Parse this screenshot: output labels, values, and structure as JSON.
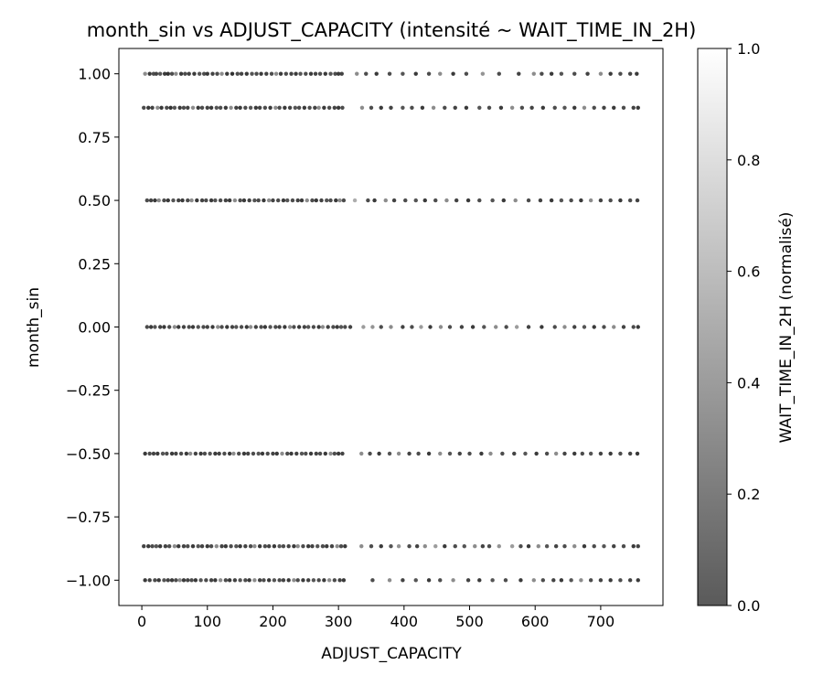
{
  "chart_data": {
    "type": "scatter",
    "title": "month_sin vs ADJUST_CAPACITY (intensité ~ WAIT_TIME_IN_2H)",
    "xlabel": "ADJUST_CAPACITY",
    "ylabel": "month_sin",
    "xlim": [
      -35,
      795
    ],
    "ylim": [
      -1.1,
      1.1
    ],
    "x_ticks": [
      0,
      100,
      200,
      300,
      400,
      500,
      600,
      700
    ],
    "x_tick_labels": [
      "0",
      "100",
      "200",
      "300",
      "400",
      "500",
      "600",
      "700"
    ],
    "y_ticks": [
      1.0,
      0.75,
      0.5,
      0.25,
      0.0,
      -0.25,
      -0.5,
      -0.75,
      -1.0
    ],
    "y_tick_labels": [
      "1.00",
      "0.75",
      "0.50",
      "0.25",
      "0.00",
      "−0.25",
      "−0.50",
      "−0.75",
      "−1.00"
    ],
    "grid": false,
    "point_color_encoding": "grayscale, dark gray (0) to white (1)",
    "colorbar": {
      "label": "WAIT_TIME_IN_2H (normalisé)",
      "range": [
        0.0,
        1.0
      ],
      "ticks": [
        0.0,
        0.2,
        0.4,
        0.6,
        0.8,
        1.0
      ],
      "tick_labels": [
        "0.0",
        "0.2",
        "0.4",
        "0.6",
        "0.8",
        "1.0"
      ],
      "color_low": "#5a5a5a",
      "color_high": "#ffffff"
    },
    "series": [
      {
        "y": 1.0,
        "x": [
          5,
          12,
          18,
          22,
          28,
          35,
          40,
          46,
          52,
          60,
          66,
          72,
          80,
          88,
          95,
          100,
          108,
          115,
          122,
          130,
          138,
          146,
          152,
          160,
          168,
          175,
          182,
          190,
          198,
          205,
          212,
          220,
          228,
          235,
          242,
          250,
          258,
          265,
          272,
          280,
          288,
          295,
          300,
          305,
          328,
          342,
          358,
          378,
          398,
          418,
          438,
          455,
          475,
          495,
          520,
          545,
          575,
          598,
          610,
          625,
          640,
          660,
          680,
          700,
          715,
          730,
          745,
          755
        ],
        "intensity": [
          0.3,
          0.1,
          0.2,
          0.15,
          0.25,
          0.1,
          0.05,
          0.2,
          0.3,
          0.1,
          0.2,
          0.15,
          0.1,
          0.25,
          0.2,
          0.1,
          0.15,
          0.2,
          0.3,
          0.1,
          0.05,
          0.2,
          0.15,
          0.1,
          0.25,
          0.2,
          0.1,
          0.15,
          0.2,
          0.3,
          0.1,
          0.2,
          0.15,
          0.1,
          0.25,
          0.2,
          0.1,
          0.15,
          0.2,
          0.1,
          0.25,
          0.2,
          0.1,
          0.15,
          0.3,
          0.2,
          0.1,
          0.2,
          0.25,
          0.1,
          0.2,
          0.3,
          0.1,
          0.2,
          0.35,
          0.2,
          0.15,
          0.3,
          0.2,
          0.1,
          0.25,
          0.2,
          0.15,
          0.3,
          0.1,
          0.2,
          0.15,
          0.1
        ]
      },
      {
        "y": 0.866,
        "x": [
          3,
          10,
          16,
          24,
          30,
          38,
          44,
          50,
          58,
          64,
          70,
          78,
          86,
          92,
          100,
          106,
          114,
          120,
          128,
          136,
          144,
          150,
          158,
          166,
          174,
          180,
          188,
          196,
          204,
          210,
          218,
          226,
          234,
          240,
          248,
          256,
          264,
          270,
          278,
          286,
          294,
          300,
          306,
          336,
          350,
          365,
          380,
          398,
          412,
          428,
          445,
          462,
          478,
          495,
          515,
          530,
          548,
          565,
          580,
          595,
          612,
          630,
          645,
          660,
          675,
          690,
          705,
          720,
          735,
          750,
          757
        ],
        "intensity": [
          0.2,
          0.1,
          0.15,
          0.3,
          0.1,
          0.2,
          0.05,
          0.25,
          0.1,
          0.2,
          0.15,
          0.3,
          0.1,
          0.2,
          0.15,
          0.1,
          0.25,
          0.2,
          0.1,
          0.3,
          0.15,
          0.1,
          0.2,
          0.25,
          0.1,
          0.15,
          0.2,
          0.1,
          0.3,
          0.2,
          0.1,
          0.15,
          0.25,
          0.2,
          0.1,
          0.2,
          0.15,
          0.3,
          0.1,
          0.2,
          0.15,
          0.1,
          0.2,
          0.3,
          0.2,
          0.1,
          0.15,
          0.25,
          0.2,
          0.1,
          0.3,
          0.2,
          0.15,
          0.1,
          0.25,
          0.2,
          0.1,
          0.3,
          0.2,
          0.15,
          0.1,
          0.2,
          0.25,
          0.1,
          0.3,
          0.2,
          0.15,
          0.1,
          0.2,
          0.15,
          0.1
        ]
      },
      {
        "y": 0.5,
        "x": [
          8,
          14,
          20,
          26,
          34,
          40,
          48,
          56,
          62,
          70,
          76,
          84,
          92,
          98,
          106,
          112,
          120,
          128,
          134,
          142,
          150,
          156,
          164,
          172,
          178,
          186,
          194,
          200,
          208,
          216,
          222,
          230,
          238,
          244,
          252,
          260,
          266,
          274,
          282,
          288,
          296,
          302,
          308,
          325,
          345,
          355,
          372,
          385,
          402,
          418,
          432,
          448,
          465,
          480,
          498,
          515,
          535,
          552,
          570,
          590,
          608,
          625,
          640,
          655,
          670,
          685,
          700,
          715,
          730,
          745,
          756
        ],
        "intensity": [
          0.2,
          0.15,
          0.1,
          0.3,
          0.2,
          0.1,
          0.25,
          0.15,
          0.1,
          0.2,
          0.3,
          0.1,
          0.15,
          0.2,
          0.1,
          0.25,
          0.2,
          0.15,
          0.1,
          0.3,
          0.2,
          0.1,
          0.15,
          0.25,
          0.2,
          0.1,
          0.3,
          0.15,
          0.2,
          0.1,
          0.25,
          0.2,
          0.15,
          0.1,
          0.3,
          0.2,
          0.1,
          0.15,
          0.25,
          0.2,
          0.1,
          0.3,
          0.2,
          0.5,
          0.2,
          0.1,
          0.3,
          0.15,
          0.2,
          0.25,
          0.1,
          0.2,
          0.3,
          0.15,
          0.1,
          0.2,
          0.25,
          0.1,
          0.3,
          0.2,
          0.15,
          0.1,
          0.25,
          0.2,
          0.1,
          0.3,
          0.15,
          0.2,
          0.1,
          0.2,
          0.15
        ]
      },
      {
        "y": 0.0,
        "x": [
          8,
          14,
          20,
          28,
          34,
          42,
          50,
          56,
          64,
          72,
          78,
          86,
          94,
          100,
          108,
          116,
          122,
          130,
          138,
          144,
          152,
          160,
          166,
          174,
          182,
          188,
          196,
          204,
          210,
          218,
          226,
          232,
          240,
          248,
          254,
          262,
          270,
          276,
          284,
          292,
          298,
          304,
          310,
          318,
          338,
          352,
          365,
          380,
          398,
          412,
          426,
          440,
          456,
          470,
          488,
          505,
          522,
          540,
          556,
          572,
          590,
          610,
          630,
          645,
          660,
          675,
          690,
          705,
          720,
          735,
          750,
          757
        ],
        "intensity": [
          0.2,
          0.1,
          0.25,
          0.15,
          0.1,
          0.2,
          0.3,
          0.1,
          0.15,
          0.2,
          0.1,
          0.25,
          0.2,
          0.15,
          0.1,
          0.3,
          0.2,
          0.1,
          0.15,
          0.25,
          0.2,
          0.1,
          0.3,
          0.15,
          0.2,
          0.1,
          0.25,
          0.2,
          0.15,
          0.1,
          0.3,
          0.2,
          0.1,
          0.15,
          0.25,
          0.2,
          0.1,
          0.3,
          0.15,
          0.2,
          0.1,
          0.25,
          0.2,
          0.15,
          0.4,
          0.35,
          0.2,
          0.3,
          0.15,
          0.2,
          0.4,
          0.1,
          0.3,
          0.2,
          0.15,
          0.1,
          0.25,
          0.3,
          0.2,
          0.4,
          0.15,
          0.1,
          0.2,
          0.3,
          0.15,
          0.25,
          0.1,
          0.2,
          0.3,
          0.15,
          0.2,
          0.1
        ]
      },
      {
        "y": -0.5,
        "x": [
          5,
          12,
          18,
          24,
          32,
          38,
          46,
          52,
          60,
          68,
          74,
          82,
          90,
          96,
          104,
          112,
          118,
          126,
          134,
          140,
          148,
          156,
          162,
          170,
          178,
          184,
          192,
          200,
          206,
          214,
          222,
          228,
          236,
          244,
          250,
          258,
          266,
          272,
          280,
          288,
          294,
          300,
          306,
          335,
          348,
          362,
          378,
          392,
          408,
          422,
          438,
          455,
          470,
          485,
          500,
          518,
          532,
          550,
          568,
          585,
          602,
          618,
          632,
          645,
          660,
          672,
          685,
          700,
          715,
          730,
          745,
          756
        ],
        "intensity": [
          0.1,
          0.2,
          0.15,
          0.1,
          0.25,
          0.2,
          0.1,
          0.15,
          0.2,
          0.1,
          0.3,
          0.15,
          0.1,
          0.2,
          0.25,
          0.1,
          0.15,
          0.2,
          0.1,
          0.3,
          0.2,
          0.1,
          0.15,
          0.2,
          0.25,
          0.1,
          0.2,
          0.15,
          0.1,
          0.3,
          0.2,
          0.1,
          0.15,
          0.25,
          0.2,
          0.1,
          0.15,
          0.2,
          0.1,
          0.3,
          0.2,
          0.1,
          0.15,
          0.3,
          0.2,
          0.1,
          0.25,
          0.3,
          0.15,
          0.2,
          0.1,
          0.3,
          0.25,
          0.15,
          0.2,
          0.1,
          0.3,
          0.2,
          0.15,
          0.25,
          0.1,
          0.2,
          0.3,
          0.15,
          0.1,
          0.2,
          0.25,
          0.15,
          0.1,
          0.2,
          0.15,
          0.1
        ]
      },
      {
        "y": -0.866,
        "x": [
          3,
          10,
          16,
          22,
          28,
          36,
          42,
          50,
          56,
          64,
          70,
          78,
          86,
          92,
          100,
          106,
          114,
          122,
          128,
          136,
          144,
          150,
          158,
          166,
          172,
          180,
          188,
          194,
          202,
          210,
          216,
          224,
          232,
          238,
          246,
          254,
          260,
          268,
          276,
          282,
          290,
          298,
          304,
          310,
          335,
          350,
          365,
          380,
          392,
          408,
          420,
          432,
          448,
          462,
          478,
          492,
          508,
          520,
          530,
          545,
          565,
          578,
          590,
          605,
          618,
          632,
          645,
          660,
          675,
          690,
          705,
          720,
          735,
          750,
          757
        ],
        "intensity": [
          0.15,
          0.1,
          0.2,
          0.25,
          0.1,
          0.15,
          0.2,
          0.3,
          0.1,
          0.15,
          0.2,
          0.1,
          0.25,
          0.15,
          0.1,
          0.2,
          0.3,
          0.15,
          0.1,
          0.2,
          0.25,
          0.1,
          0.15,
          0.2,
          0.3,
          0.1,
          0.2,
          0.15,
          0.1,
          0.25,
          0.2,
          0.15,
          0.1,
          0.3,
          0.2,
          0.1,
          0.15,
          0.25,
          0.2,
          0.1,
          0.15,
          0.3,
          0.2,
          0.1,
          0.3,
          0.2,
          0.1,
          0.25,
          0.35,
          0.2,
          0.15,
          0.3,
          0.4,
          0.1,
          0.2,
          0.25,
          0.3,
          0.15,
          0.2,
          0.35,
          0.4,
          0.2,
          0.1,
          0.3,
          0.25,
          0.15,
          0.2,
          0.3,
          0.1,
          0.2,
          0.25,
          0.15,
          0.2,
          0.1,
          0.15
        ]
      },
      {
        "y": -1.0,
        "x": [
          5,
          12,
          20,
          26,
          34,
          40,
          46,
          52,
          58,
          64,
          70,
          76,
          82,
          90,
          98,
          106,
          112,
          120,
          128,
          134,
          142,
          150,
          158,
          164,
          172,
          180,
          186,
          194,
          202,
          210,
          216,
          224,
          232,
          238,
          246,
          254,
          262,
          270,
          278,
          286,
          294,
          302,
          308,
          352,
          378,
          398,
          418,
          438,
          455,
          475,
          498,
          515,
          535,
          555,
          578,
          598,
          612,
          628,
          640,
          655,
          670,
          685,
          700,
          715,
          730,
          745,
          757
        ],
        "intensity": [
          0.1,
          0.15,
          0.2,
          0.1,
          0.25,
          0.15,
          0.1,
          0.2,
          0.3,
          0.1,
          0.15,
          0.2,
          0.1,
          0.25,
          0.2,
          0.15,
          0.1,
          0.3,
          0.2,
          0.1,
          0.15,
          0.25,
          0.2,
          0.1,
          0.3,
          0.15,
          0.2,
          0.1,
          0.25,
          0.2,
          0.15,
          0.1,
          0.3,
          0.2,
          0.1,
          0.15,
          0.25,
          0.2,
          0.1,
          0.3,
          0.2,
          0.15,
          0.1,
          0.2,
          0.3,
          0.15,
          0.25,
          0.1,
          0.2,
          0.3,
          0.15,
          0.1,
          0.25,
          0.2,
          0.1,
          0.3,
          0.2,
          0.15,
          0.1,
          0.25,
          0.3,
          0.2,
          0.15,
          0.1,
          0.2,
          0.15,
          0.1
        ]
      }
    ]
  }
}
